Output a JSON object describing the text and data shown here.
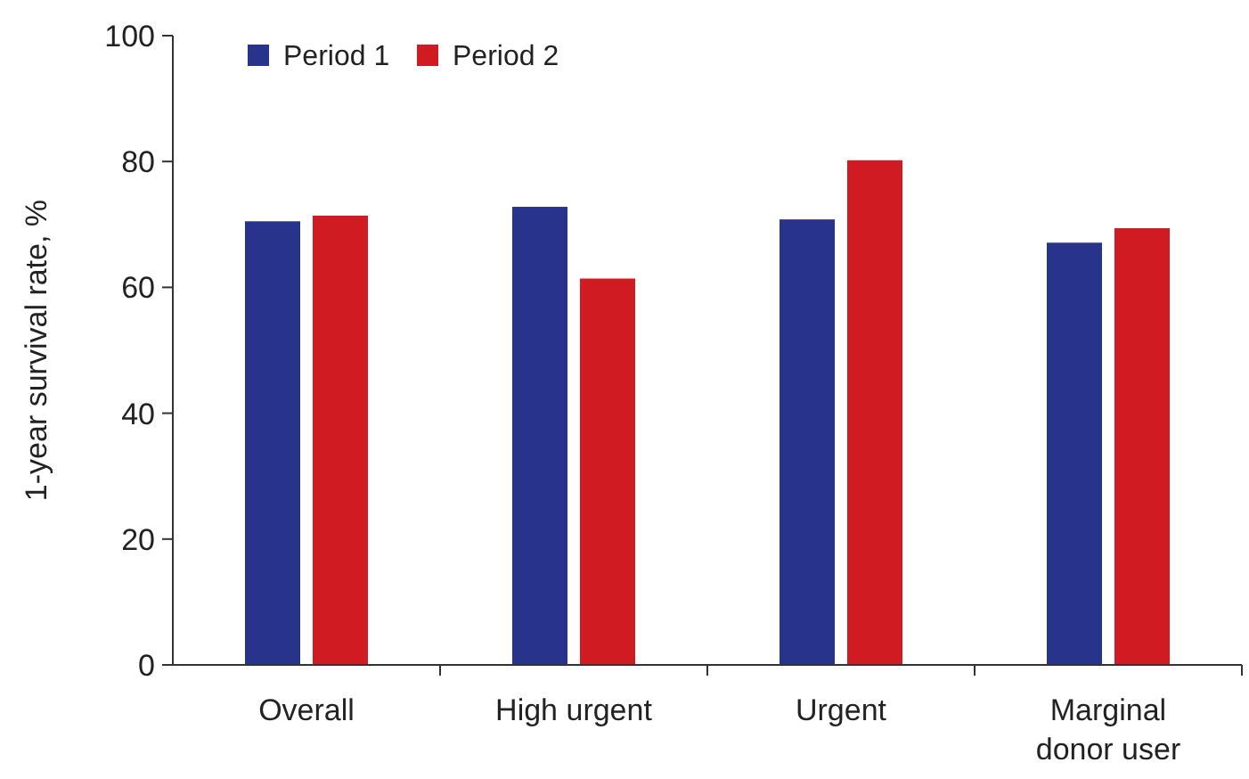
{
  "chart_data": {
    "type": "bar",
    "ylabel": "1-year survival rate, %",
    "categories": [
      "Overall",
      "High urgent",
      "Urgent",
      "Marginal donor user"
    ],
    "series": [
      {
        "name": "Period 1",
        "color": "#28348c",
        "values": [
          70.5,
          72.8,
          70.8,
          67.1
        ]
      },
      {
        "name": "Period 2",
        "color": "#d11b22",
        "values": [
          71.4,
          61.4,
          80.2,
          69.4
        ]
      }
    ],
    "ylim": [
      0,
      100
    ],
    "yticks": [
      0,
      20,
      40,
      60,
      80,
      100
    ],
    "grid": false,
    "legend": "top left"
  }
}
